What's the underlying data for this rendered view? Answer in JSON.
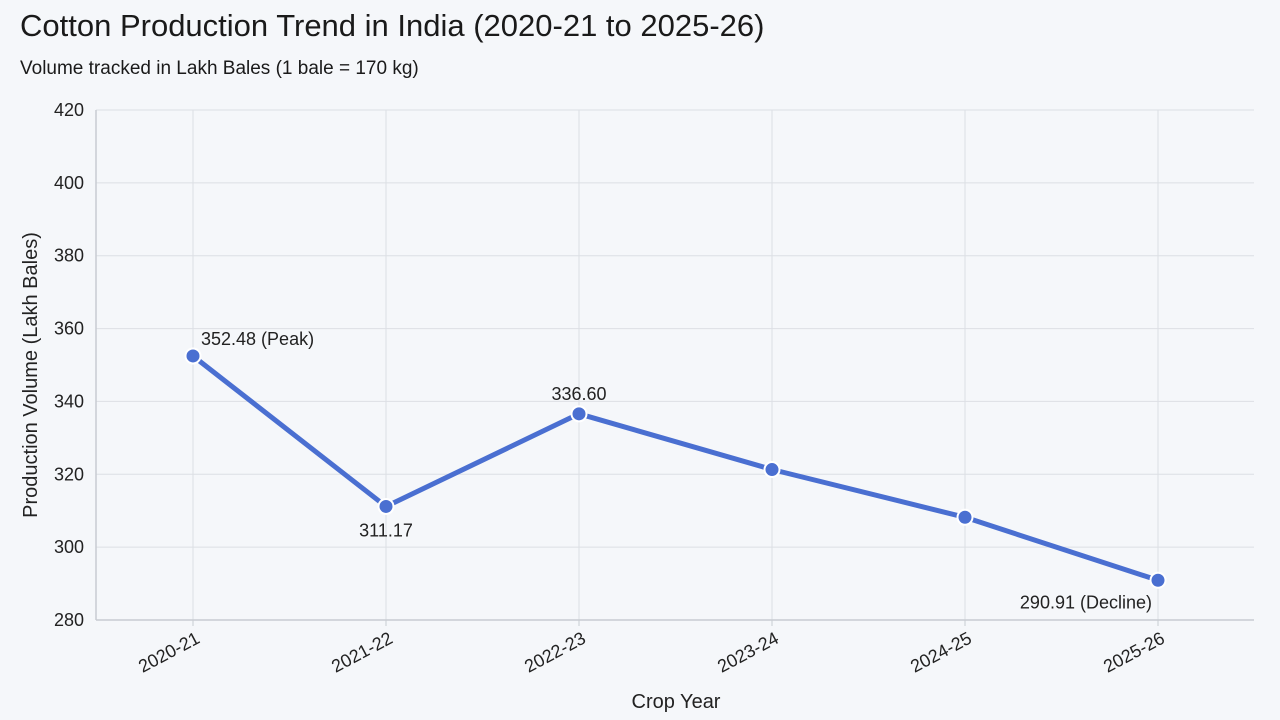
{
  "header": {
    "title": "Cotton Production Trend in India (2020-21 to 2025-26)",
    "subtitle": "Volume tracked in Lakh Bales (1 bale = 170 kg)"
  },
  "colors": {
    "line": "#4a6fd1",
    "point_stroke": "#ffffff",
    "grid": "#dcdfe4",
    "axis": "#c8ccd2"
  },
  "chart_data": {
    "type": "line",
    "title": "Cotton Production Trend in India (2020-21 to 2025-26)",
    "subtitle": "Volume tracked in Lakh Bales (1 bale = 170 kg)",
    "xlabel": "Crop Year",
    "ylabel": "Production Volume (Lakh Bales)",
    "categories": [
      "2020-21",
      "2021-22",
      "2022-23",
      "2023-24",
      "2024-25",
      "2025-26"
    ],
    "values": [
      352.48,
      311.17,
      336.6,
      321.3,
      308.2,
      290.91
    ],
    "ylim": [
      280,
      420
    ],
    "yticks": [
      "420",
      "400",
      "380",
      "360",
      "340",
      "320",
      "300",
      "280"
    ],
    "grid": true,
    "annotations": [
      {
        "index": 0,
        "text": "352.48 (Peak)"
      },
      {
        "index": 1,
        "text": "311.17"
      },
      {
        "index": 2,
        "text": "336.60"
      },
      {
        "index": 5,
        "text": "290.91 (Decline)"
      }
    ]
  }
}
